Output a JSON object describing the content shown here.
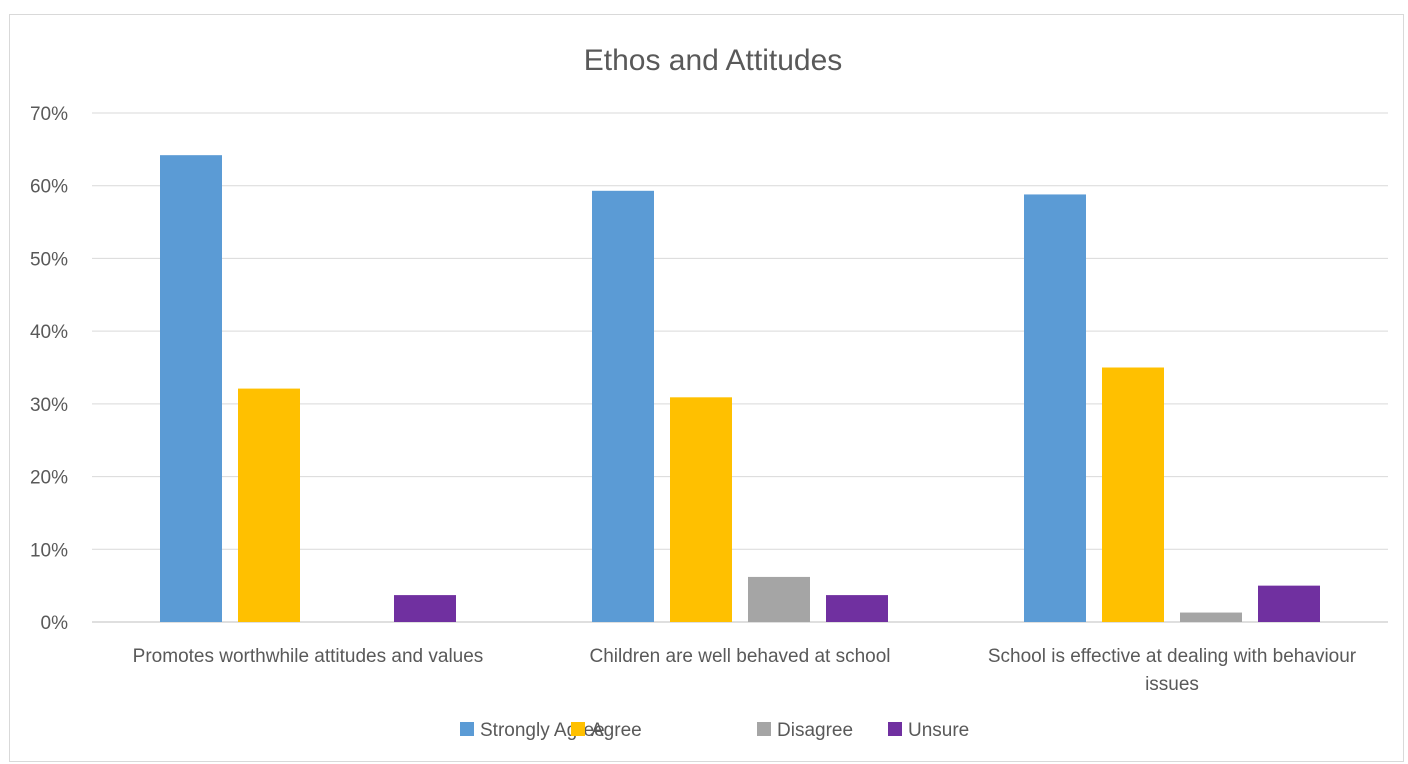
{
  "chart_data": {
    "type": "bar",
    "title": "Ethos and Attitudes",
    "categories": [
      [
        "Promotes worthwhile attitudes and values"
      ],
      [
        "Children are well behaved at school"
      ],
      [
        "School is effective at dealing with behaviour",
        "issues"
      ]
    ],
    "series": [
      {
        "name": "Strongly Agree",
        "color": "#5b9bd5",
        "values": [
          64.2,
          59.3,
          58.8
        ]
      },
      {
        "name": "Agree",
        "color": "#ffc000",
        "values": [
          32.1,
          30.9,
          35.0
        ]
      },
      {
        "name": "Disagree",
        "color": "#a5a5a5",
        "values": [
          0,
          6.2,
          1.3
        ]
      },
      {
        "name": "Unsure",
        "color": "#7030a0",
        "values": [
          3.7,
          3.7,
          5.0
        ]
      }
    ],
    "y_ticks": [
      "0%",
      "10%",
      "20%",
      "30%",
      "40%",
      "50%",
      "60%",
      "70%"
    ],
    "ylim": [
      0,
      70
    ],
    "grid": true,
    "legend_position": "bottom"
  }
}
